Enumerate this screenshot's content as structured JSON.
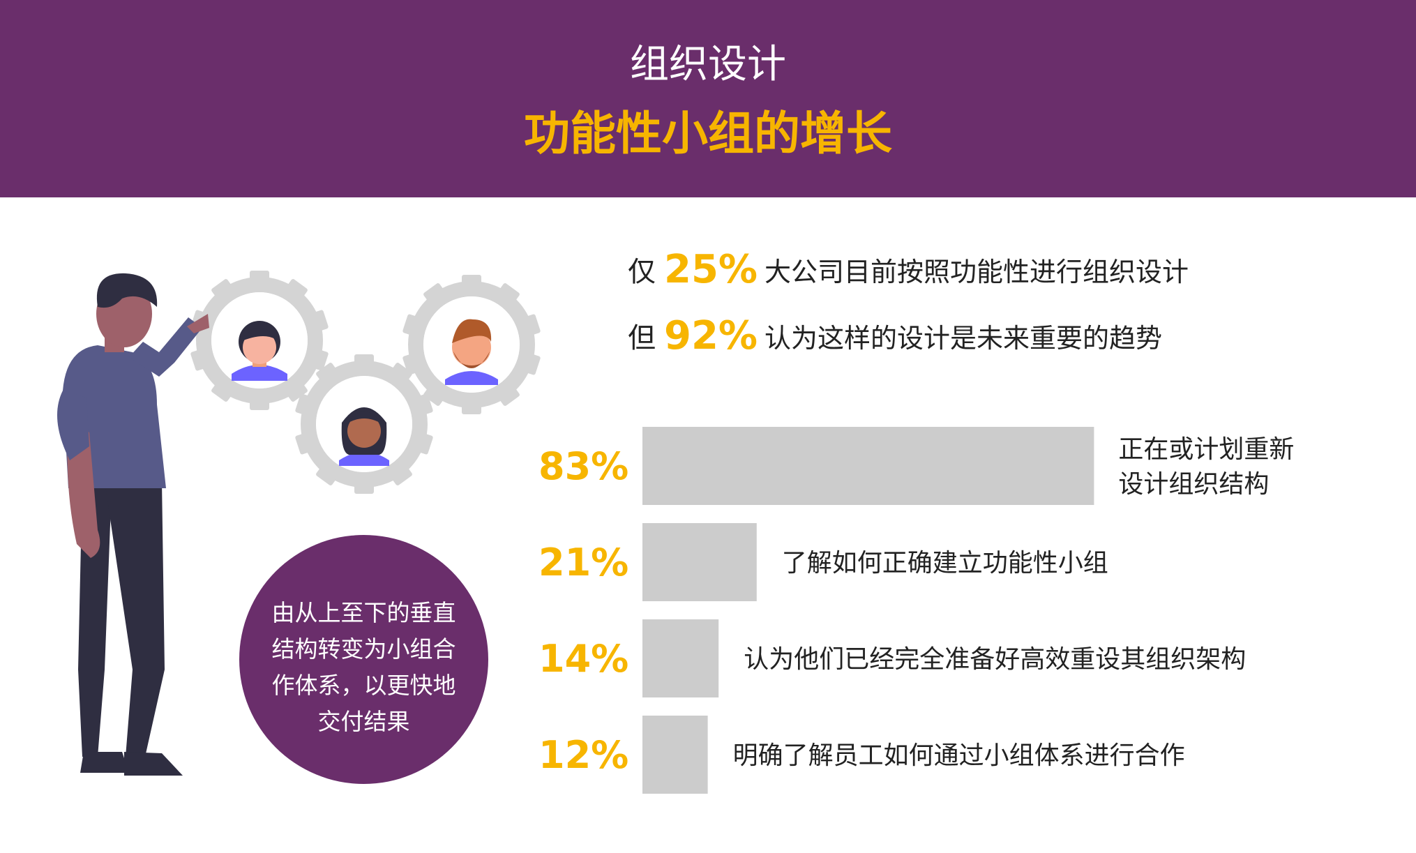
{
  "header": {
    "subtitle": "组织设计",
    "title": "功能性小组的增长"
  },
  "stats": [
    {
      "prefix": "仅",
      "percent": "25%",
      "text": "大公司目前按照功能性进行组织设计"
    },
    {
      "prefix": "但",
      "percent": "92%",
      "text": "认为这样的设计是未来重要的趋势"
    }
  ],
  "callout": {
    "lines": [
      "由从上至下的垂直",
      "结构转变为小组合",
      "作体系，以更快地",
      "交付结果"
    ]
  },
  "colors": {
    "purple": "#6a2e6b",
    "accent": "#f7b500",
    "bar": "#cccccc",
    "gear": "#d4d4d4"
  },
  "chart_data": {
    "type": "bar",
    "orientation": "horizontal",
    "values": [
      83,
      21,
      14,
      12
    ],
    "value_labels": [
      "83%",
      "21%",
      "14%",
      "12%"
    ],
    "categories": [
      [
        "正在或计划重新",
        "设计组织结构"
      ],
      [
        "了解如何正确建立功能性小组"
      ],
      [
        "认为他们已经完全准备好高效重设其组织架构"
      ],
      [
        "明确了解员工如何通过小组体系进行合作"
      ]
    ],
    "xlim": [
      0,
      100
    ]
  }
}
